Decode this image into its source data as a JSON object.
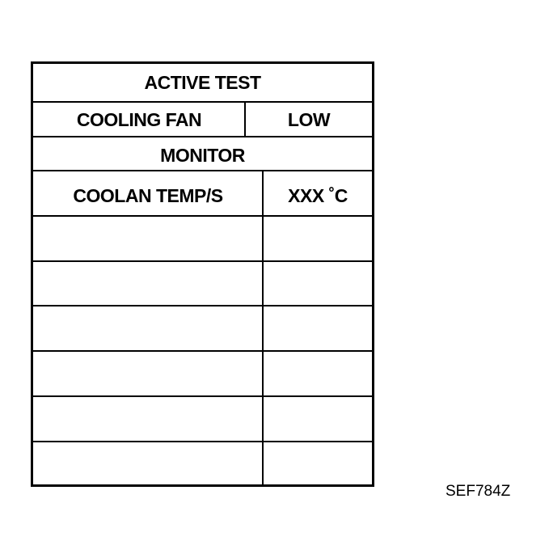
{
  "header": {
    "title": "ACTIVE TEST"
  },
  "test_item": {
    "label": "COOLING FAN",
    "value": "LOW"
  },
  "monitor": {
    "title": "MONITOR"
  },
  "monitor_rows": [
    {
      "label": "COOLAN TEMP/S",
      "value": "XXX ˚C"
    }
  ],
  "empty_rows": 6,
  "figure_id": "SEF784Z"
}
